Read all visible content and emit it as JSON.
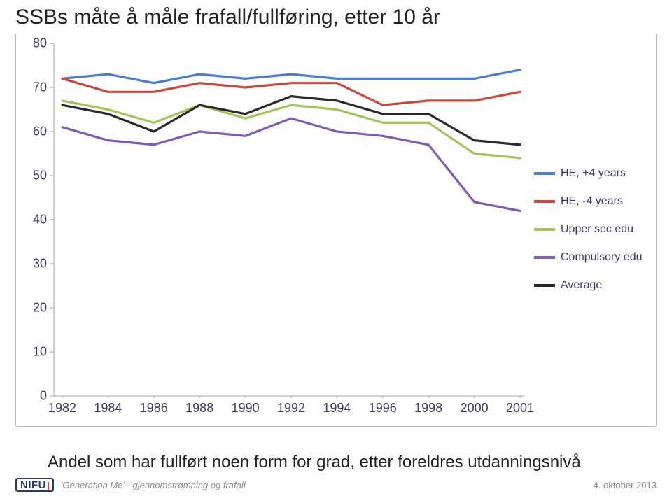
{
  "title": "SSBs måte å måle frafall/fullføring, etter 10 år",
  "subtitle": "Andel som har fullført noen form for grad, etter foreldres utdanningsnivå",
  "footer": {
    "logo_text": "NIFU",
    "text": "'Generation Me' - gjennomstrømning og frafall",
    "date": "4. oktober 2013"
  },
  "chart": {
    "type": "line",
    "xlim": [
      0,
      10
    ],
    "ylim": [
      0,
      80
    ],
    "ytick_step": 10,
    "x_categories": [
      "1982",
      "1984",
      "1986",
      "1988",
      "1990",
      "1992",
      "1994",
      "1996",
      "1998",
      "2000",
      "2001"
    ],
    "background_color": "#ffffff",
    "axis_color": "#b8b8b8",
    "tick_color": "#b8b8b8",
    "text_color": "#3b3b5a",
    "label_fontsize": 18,
    "legend_fontsize": 16,
    "line_width": 3.2,
    "series": [
      {
        "name": "HE, +4 years",
        "color": "#4a7ec9",
        "values": [
          72,
          73,
          71,
          73,
          72,
          73,
          72,
          72,
          72,
          72,
          74
        ]
      },
      {
        "name": "HE, -4 years",
        "color": "#c24a3f",
        "values": [
          72,
          69,
          69,
          71,
          70,
          71,
          71,
          66,
          67,
          67,
          69
        ]
      },
      {
        "name": "Upper sec edu",
        "color": "#a4c35a",
        "values": [
          67,
          65,
          62,
          66,
          63,
          66,
          65,
          62,
          62,
          55,
          54
        ]
      },
      {
        "name": "Compulsory edu",
        "color": "#7e5db0",
        "values": [
          61,
          58,
          57,
          60,
          59,
          63,
          60,
          59,
          57,
          44,
          42
        ]
      },
      {
        "name": "Average",
        "color": "#2a2a2a",
        "values": [
          66,
          64,
          60,
          66,
          64,
          68,
          67,
          64,
          64,
          58,
          57
        ]
      }
    ]
  }
}
